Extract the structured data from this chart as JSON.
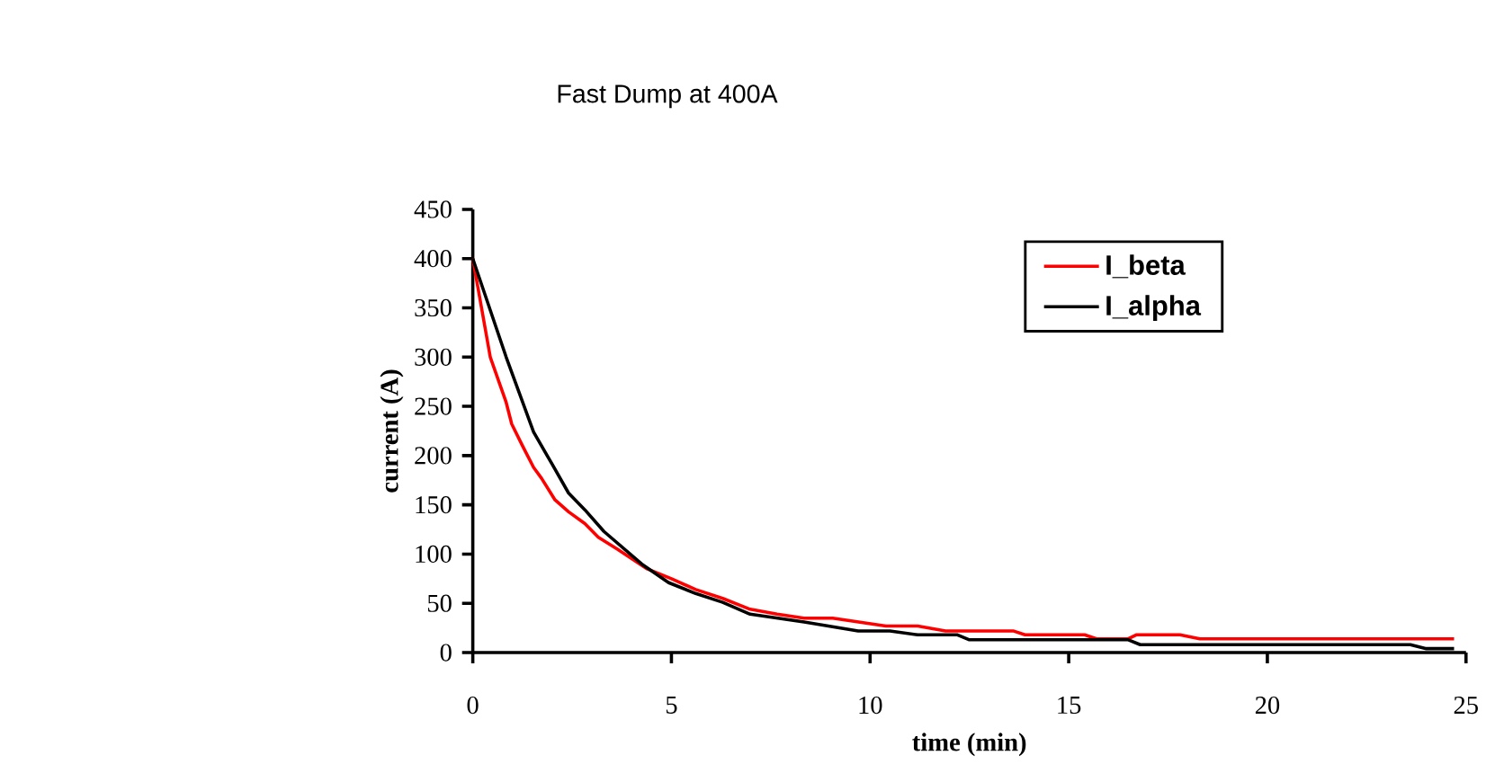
{
  "chart_data": {
    "type": "line",
    "title": "Fast Dump at 400A",
    "xlabel": "time (min)",
    "ylabel": "current (A)",
    "xlim": [
      0,
      25
    ],
    "xticks": [
      0,
      5,
      10,
      15,
      20,
      25
    ],
    "ylim": [
      0,
      450
    ],
    "yticks": [
      0,
      50,
      100,
      150,
      200,
      250,
      300,
      350,
      400,
      450
    ],
    "grid": false,
    "legend": "top right",
    "marker": "none",
    "line_style": "solid",
    "series": [
      {
        "name": "I_beta",
        "color": "#ff0000",
        "x": [
          0,
          0.44,
          0.84,
          0.98,
          1.25,
          1.53,
          1.73,
          2.07,
          2.41,
          2.82,
          3.16,
          3.64,
          4.39,
          5,
          5.61,
          6.29,
          6.98,
          7.66,
          8.34,
          9.06,
          10.4,
          11.2,
          11.9,
          13.6,
          13.9,
          15.4,
          15.7,
          16.5,
          16.7,
          17.8,
          18.3,
          24.7
        ],
        "values": [
          400,
          300,
          254,
          232,
          210,
          188,
          177,
          155,
          143,
          131,
          117,
          105,
          85,
          75,
          64,
          55,
          44,
          39,
          35,
          35,
          27,
          27,
          22,
          22,
          18,
          18,
          14,
          14,
          18,
          18,
          14,
          14
        ]
      },
      {
        "name": "I_alpha",
        "color": "#000000",
        "x": [
          0,
          0.84,
          1.53,
          2.0,
          2.41,
          2.82,
          3.3,
          4.25,
          4.93,
          5.61,
          6.29,
          6.98,
          8.34,
          9.7,
          10.5,
          11.2,
          12.2,
          12.5,
          16.5,
          16.8,
          23.6,
          24.0,
          24.7
        ],
        "values": [
          400,
          300,
          224,
          191,
          162,
          145,
          123,
          90,
          71,
          60,
          51,
          39,
          31,
          22,
          22,
          18,
          18,
          13,
          13,
          8,
          8,
          4,
          4
        ]
      }
    ]
  }
}
